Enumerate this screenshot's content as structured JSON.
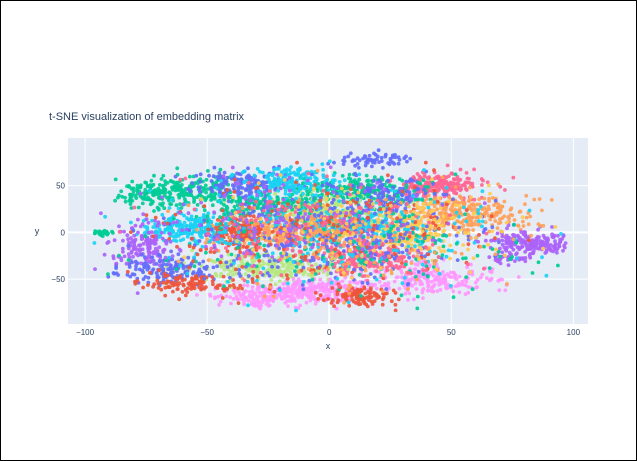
{
  "chart_data": {
    "type": "scatter",
    "title": "t-SNE visualization of embedding matrix",
    "xlabel": "x",
    "ylabel": "y",
    "xlim": [
      -107,
      106
    ],
    "ylim": [
      -98,
      101
    ],
    "xticks": [
      -100,
      -50,
      0,
      50,
      100
    ],
    "yticks": [
      -50,
      0,
      50
    ],
    "grid": true,
    "legend": "none",
    "background": "#E5ECF6",
    "colors": [
      "#636EFA",
      "#EF553B",
      "#00CC96",
      "#AB63FA",
      "#FFA15A",
      "#19D3F3",
      "#FF6692",
      "#B6E880",
      "#FF97FF",
      "#FECB52"
    ],
    "clusters": [
      {
        "cx": 45,
        "cy": 51,
        "sx": 9,
        "sy": 7,
        "n": 220,
        "color": "#FF6692"
      },
      {
        "cx": 55,
        "cy": 20,
        "sx": 13,
        "sy": 10,
        "n": 260,
        "color": "#FFA15A"
      },
      {
        "cx": 33,
        "cy": 0,
        "sx": 9,
        "sy": 13,
        "n": 240,
        "color": "#FECB52"
      },
      {
        "cx": 40,
        "cy": -50,
        "sx": 15,
        "sy": 9,
        "n": 240,
        "color": "#FF97FF"
      },
      {
        "cx": 85,
        "cy": -12,
        "sx": 10,
        "sy": 6,
        "n": 220,
        "color": "#AB63FA"
      },
      {
        "cx": 73,
        "cy": -28,
        "sx": 4,
        "sy": 3,
        "n": 30,
        "color": "#AB63FA"
      },
      {
        "cx": 13,
        "cy": -28,
        "sx": 10,
        "sy": 7,
        "n": 220,
        "color": "#FF6692"
      },
      {
        "cx": 10,
        "cy": 45,
        "sx": 13,
        "sy": 8,
        "n": 240,
        "color": "#00CC96"
      },
      {
        "cx": 20,
        "cy": 78,
        "sx": 8,
        "sy": 4,
        "n": 60,
        "color": "#636EFA"
      },
      {
        "cx": 8,
        "cy": 10,
        "sx": 11,
        "sy": 8,
        "n": 180,
        "color": "#19D3F3"
      },
      {
        "cx": -5,
        "cy": 22,
        "sx": 15,
        "sy": 10,
        "n": 280,
        "color": "#B6E880"
      },
      {
        "cx": -25,
        "cy": -38,
        "sx": 15,
        "sy": 8,
        "n": 260,
        "color": "#B6E880"
      },
      {
        "cx": -5,
        "cy": -62,
        "sx": 11,
        "sy": 7,
        "n": 220,
        "color": "#FF97FF"
      },
      {
        "cx": -28,
        "cy": -68,
        "sx": 10,
        "sy": 6,
        "n": 150,
        "color": "#FF97FF"
      },
      {
        "cx": 12,
        "cy": -68,
        "sx": 7,
        "sy": 5,
        "n": 110,
        "color": "#EF553B"
      },
      {
        "cx": -12,
        "cy": 0,
        "sx": 16,
        "sy": 9,
        "n": 320,
        "color": "#FFA15A"
      },
      {
        "cx": -38,
        "cy": 0,
        "sx": 6,
        "sy": 9,
        "n": 160,
        "color": "#EF553B"
      },
      {
        "cx": -58,
        "cy": 5,
        "sx": 10,
        "sy": 9,
        "n": 220,
        "color": "#19D3F3"
      },
      {
        "cx": -58,
        "cy": 45,
        "sx": 11,
        "sy": 8,
        "n": 200,
        "color": "#00CC96"
      },
      {
        "cx": -35,
        "cy": 52,
        "sx": 9,
        "sy": 9,
        "n": 150,
        "color": "#636EFA"
      },
      {
        "cx": -28,
        "cy": 30,
        "sx": 9,
        "sy": 7,
        "n": 120,
        "color": "#00CC96"
      },
      {
        "cx": -15,
        "cy": 55,
        "sx": 10,
        "sy": 8,
        "n": 160,
        "color": "#19D3F3"
      },
      {
        "cx": -75,
        "cy": -15,
        "sx": 7,
        "sy": 12,
        "n": 150,
        "color": "#AB63FA"
      },
      {
        "cx": -75,
        "cy": 40,
        "sx": 7,
        "sy": 7,
        "n": 80,
        "color": "#00CC96"
      },
      {
        "cx": -65,
        "cy": -40,
        "sx": 11,
        "sy": 7,
        "n": 150,
        "color": "#636EFA"
      },
      {
        "cx": -55,
        "cy": -55,
        "sx": 10,
        "sy": 6,
        "n": 110,
        "color": "#EF553B"
      },
      {
        "cx": -93,
        "cy": 0,
        "sx": 2,
        "sy": 1.5,
        "n": 25,
        "color": "#00CC96"
      },
      {
        "cx": 25,
        "cy": 40,
        "sx": 8,
        "sy": 10,
        "n": 100,
        "color": "#636EFA"
      },
      {
        "cx": 0,
        "cy": 0,
        "sx": 28,
        "sy": 25,
        "n": 400,
        "color": "#636EFA"
      },
      {
        "cx": 0,
        "cy": 0,
        "sx": 35,
        "sy": 28,
        "n": 250,
        "color": "#19D3F3"
      },
      {
        "cx": 5,
        "cy": -5,
        "sx": 40,
        "sy": 30,
        "n": 200,
        "color": "#00CC96"
      },
      {
        "cx": -5,
        "cy": 0,
        "sx": 38,
        "sy": 28,
        "n": 200,
        "color": "#EF553B"
      },
      {
        "cx": 10,
        "cy": -10,
        "sx": 35,
        "sy": 28,
        "n": 150,
        "color": "#FFA15A"
      },
      {
        "cx": -20,
        "cy": 10,
        "sx": 30,
        "sy": 26,
        "n": 150,
        "color": "#AB63FA"
      },
      {
        "cx": 0,
        "cy": 0,
        "sx": 30,
        "sy": 28,
        "n": 150,
        "color": "#FF6692"
      },
      {
        "cx": 20,
        "cy": 10,
        "sx": 30,
        "sy": 26,
        "n": 120,
        "color": "#FECB52"
      }
    ]
  }
}
